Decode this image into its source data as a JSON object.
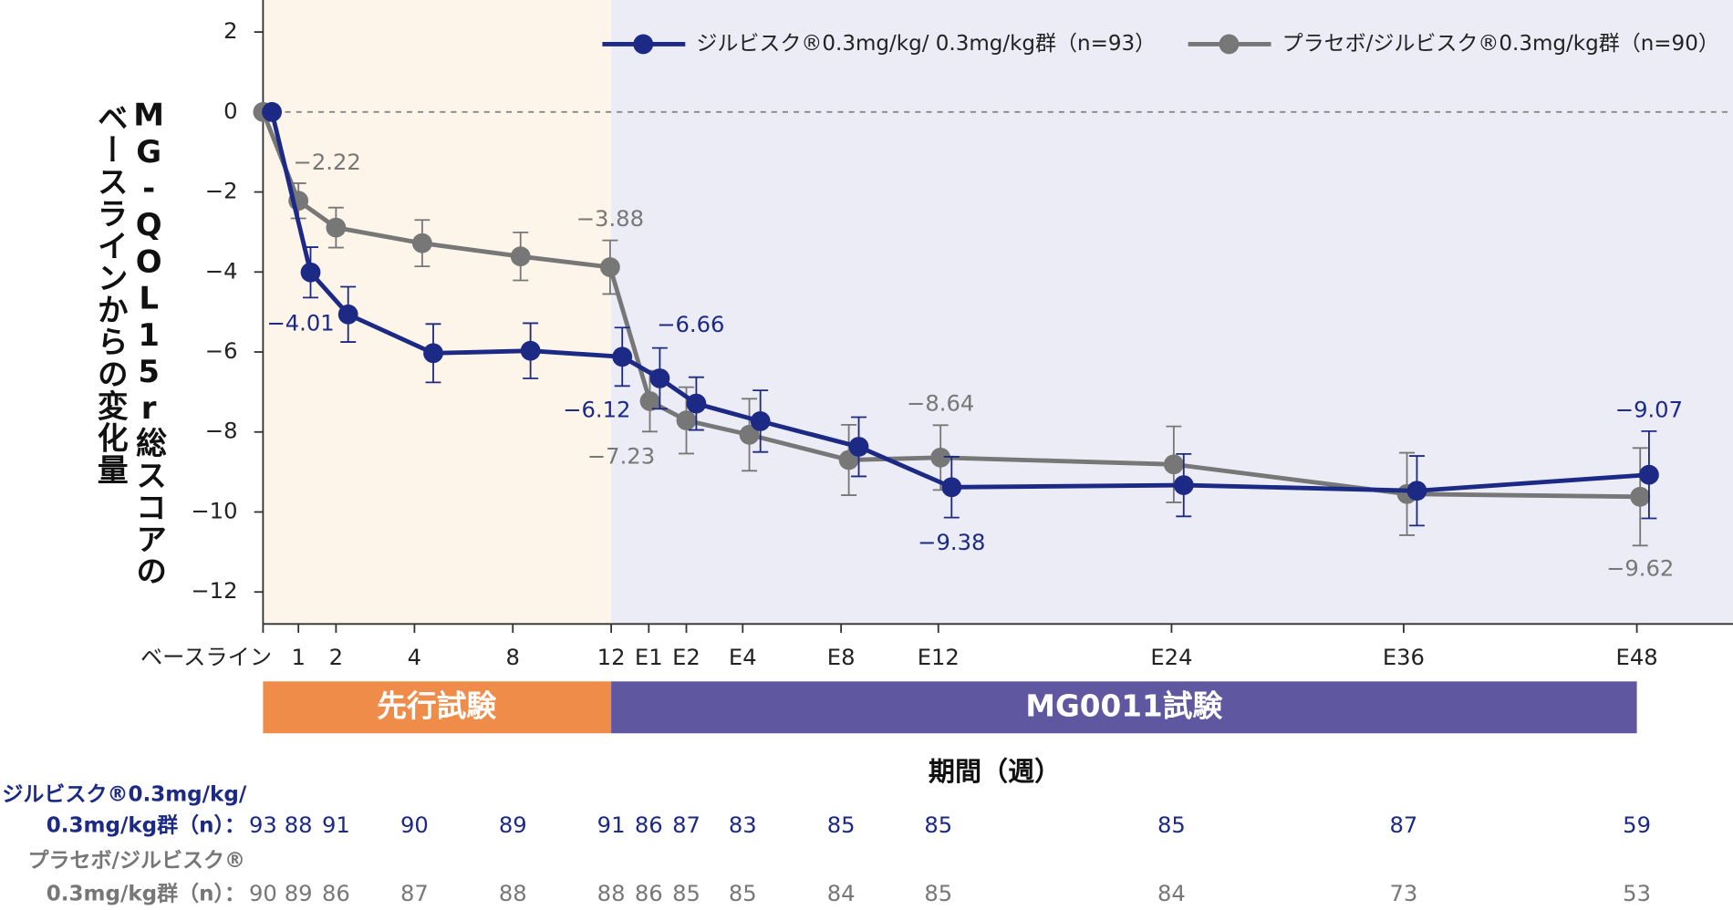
{
  "chart_data": {
    "type": "line",
    "ylabel_lines": [
      "MG-QOL15r総スコアの",
      "ベースラインからの変化量"
    ],
    "xlabel": "期間（週）",
    "categories": [
      "ベースライン",
      "1",
      "2",
      "4",
      "8",
      "12",
      "E1",
      "E2",
      "E4",
      "E8",
      "E12",
      "E24",
      "E36",
      "E48"
    ],
    "ylim": [
      -12.8,
      2.8
    ],
    "yticks": [
      2,
      0,
      {
        "value": -2,
        "label": "−2"
      },
      {
        "value": -4,
        "label": "−4"
      },
      {
        "value": -6,
        "label": "−6"
      },
      {
        "value": -8,
        "label": "−8"
      },
      {
        "value": -10,
        "label": "−10"
      },
      {
        "value": -12,
        "label": "−12"
      }
    ],
    "phases": [
      "先行試験",
      "MG0011試験"
    ],
    "series": [
      {
        "name": "ジルビスク®0.3mg/kg/ 0.3mg/kg群（n=93）",
        "color": "#1c2a85",
        "values": [
          0,
          -4.01,
          -5.06,
          -6.03,
          -5.97,
          -6.12,
          -6.66,
          -7.29,
          -7.73,
          -8.37,
          -9.38,
          -9.33,
          -9.47,
          -9.07
        ],
        "errors": [
          null,
          0.63,
          0.69,
          0.73,
          0.69,
          0.73,
          0.76,
          0.66,
          0.77,
          0.74,
          0.76,
          0.78,
          0.87,
          1.09
        ],
        "value_labels": [
          null,
          "−4.01",
          null,
          null,
          null,
          "−6.12",
          "−6.66",
          null,
          null,
          null,
          "−9.38",
          null,
          null,
          "−9.07"
        ]
      },
      {
        "name": "プラセボ/ジルビスク®0.3mg/kg群（n=90）",
        "color": "#777777",
        "values": [
          0,
          -2.22,
          -2.89,
          -3.28,
          -3.61,
          -3.88,
          -7.23,
          -7.71,
          -8.07,
          -8.7,
          -8.64,
          -8.81,
          -9.55,
          -9.62
        ],
        "errors": [
          null,
          0.44,
          0.5,
          0.58,
          0.6,
          0.67,
          0.76,
          0.83,
          0.9,
          0.88,
          0.81,
          0.95,
          1.03,
          1.22
        ],
        "value_labels": [
          null,
          "−2.22",
          null,
          null,
          null,
          "−3.88",
          "−7.23",
          null,
          null,
          null,
          "−8.64",
          null,
          null,
          "−9.62"
        ]
      }
    ],
    "n_table": [
      {
        "label_lines": [
          "ジルビスク®0.3mg/kg/",
          "0.3mg/kg群（n）："
        ],
        "counts": [
          93,
          88,
          91,
          90,
          89,
          91,
          86,
          87,
          83,
          85,
          85,
          85,
          87,
          59
        ]
      },
      {
        "label_lines": [
          "プラセボ/ジルビスク®",
          "0.3mg/kg群（n）："
        ],
        "counts": [
          90,
          89,
          86,
          87,
          88,
          88,
          86,
          85,
          85,
          84,
          85,
          84,
          73,
          53
        ]
      }
    ]
  }
}
